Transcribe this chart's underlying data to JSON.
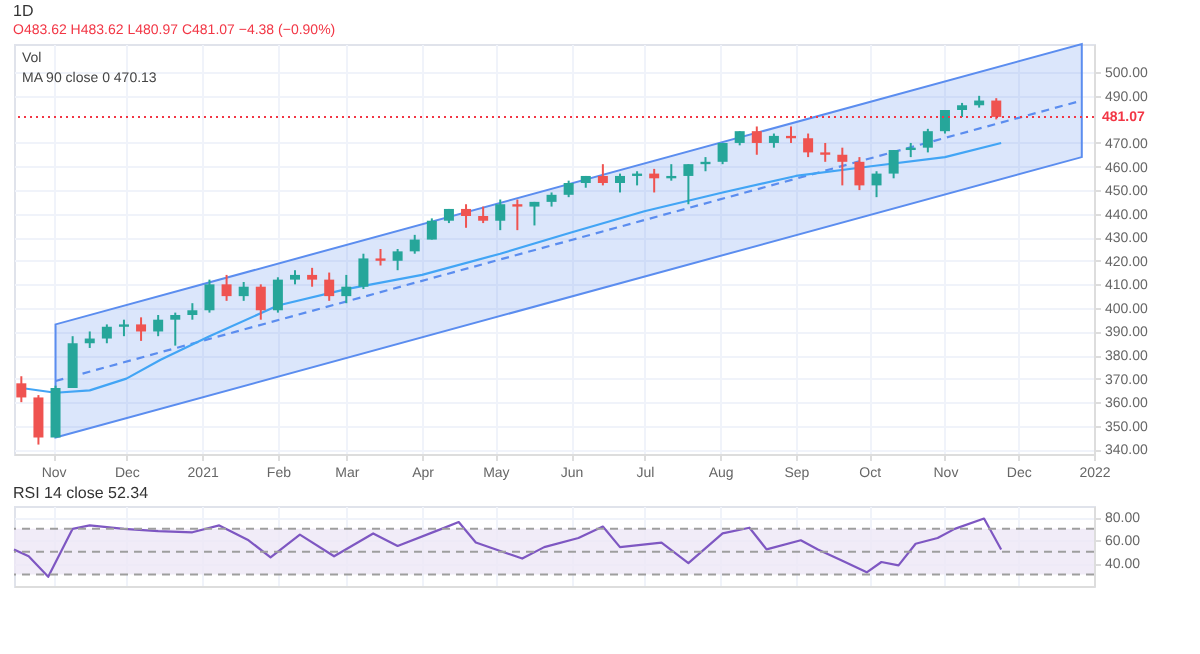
{
  "chart_data": [
    {
      "type": "candlestick",
      "title": "1D",
      "subtitle": "O483.62 H483.62 L480.97 C481.07 −4.38 (−0.90%)",
      "annotations": [
        "Vol",
        "MA 90 close 0  470.13"
      ],
      "grid": true,
      "xlim": [
        "2020-10-16",
        "2022-01-01"
      ],
      "xticks": [
        {
          "value": "2020-11-01",
          "label": "Nov"
        },
        {
          "value": "2020-12-01",
          "label": "Dec"
        },
        {
          "value": "2021-01-01",
          "label": "2021"
        },
        {
          "value": "2021-02-01",
          "label": "Feb"
        },
        {
          "value": "2021-03-01",
          "label": "Mar"
        },
        {
          "value": "2021-04-01",
          "label": "Apr"
        },
        {
          "value": "2021-05-01",
          "label": "May"
        },
        {
          "value": "2021-06-01",
          "label": "Jun"
        },
        {
          "value": "2021-07-01",
          "label": "Jul"
        },
        {
          "value": "2021-08-01",
          "label": "Aug"
        },
        {
          "value": "2021-09-01",
          "label": "Sep"
        },
        {
          "value": "2021-10-01",
          "label": "Oct"
        },
        {
          "value": "2021-11-01",
          "label": "Nov"
        },
        {
          "value": "2021-12-01",
          "label": "Dec"
        },
        {
          "value": "2022-01-01",
          "label": "2022"
        }
      ],
      "ylim": [
        338,
        512
      ],
      "yticks": [
        {
          "value": 500,
          "label": "500.00"
        },
        {
          "value": 490,
          "label": "490.00"
        },
        {
          "value": 470,
          "label": "470.00"
        },
        {
          "value": 460,
          "label": "460.00"
        },
        {
          "value": 450,
          "label": "450.00"
        },
        {
          "value": 440,
          "label": "440.00"
        },
        {
          "value": 430,
          "label": "430.00"
        },
        {
          "value": 420,
          "label": "420.00"
        },
        {
          "value": 410,
          "label": "410.00"
        },
        {
          "value": 400,
          "label": "400.00"
        },
        {
          "value": 390,
          "label": "390.00"
        },
        {
          "value": 380,
          "label": "380.00"
        },
        {
          "value": 370,
          "label": "370.00"
        },
        {
          "value": 360,
          "label": "360.00"
        },
        {
          "value": 350,
          "label": "350.00"
        },
        {
          "value": 340,
          "label": "340.00"
        }
      ],
      "ref_lines": [
        {
          "axis": "y",
          "value": 481.07,
          "label": "481.07",
          "color": "#f23645",
          "line_style": "dotted"
        }
      ],
      "series": [
        {
          "type": "line",
          "color": "#5b8def",
          "line_style": "dashed",
          "x": [
            "2020-11-02",
            "2021-12-27"
          ],
          "values": [
            369,
            488
          ],
          "lower": [
            345,
            464
          ],
          "upper": [
            393,
            512
          ]
        },
        {
          "type": "line",
          "color": "#42a5f5",
          "x": [
            "2020-10-19",
            "2020-11-02",
            "2020-11-16",
            "2020-12-01",
            "2020-12-15",
            "2021-01-04",
            "2021-02-01",
            "2021-03-01",
            "2021-04-01",
            "2021-05-03",
            "2021-06-01",
            "2021-07-01",
            "2021-08-02",
            "2021-09-01",
            "2021-10-01",
            "2021-11-01",
            "2021-11-24"
          ],
          "values": [
            366,
            364,
            365,
            370,
            378,
            388,
            401,
            408,
            414,
            423,
            432,
            441,
            449,
            456,
            460,
            464,
            470
          ]
        },
        {
          "type": "candlestick",
          "x": [
            "2020-10-19",
            "2020-10-26",
            "2020-11-02",
            "2020-11-09",
            "2020-11-16",
            "2020-11-23",
            "2020-11-30",
            "2020-12-07",
            "2020-12-14",
            "2020-12-21",
            "2020-12-28",
            "2021-01-04",
            "2021-01-11",
            "2021-01-18",
            "2021-01-25",
            "2021-02-01",
            "2021-02-08",
            "2021-02-15",
            "2021-02-22",
            "2021-03-01",
            "2021-03-08",
            "2021-03-15",
            "2021-03-22",
            "2021-03-29",
            "2021-04-05",
            "2021-04-12",
            "2021-04-19",
            "2021-04-26",
            "2021-05-03",
            "2021-05-10",
            "2021-05-17",
            "2021-05-24",
            "2021-05-31",
            "2021-06-07",
            "2021-06-14",
            "2021-06-21",
            "2021-06-28",
            "2021-07-05",
            "2021-07-12",
            "2021-07-19",
            "2021-07-26",
            "2021-08-02",
            "2021-08-09",
            "2021-08-16",
            "2021-08-23",
            "2021-08-30",
            "2021-09-06",
            "2021-09-13",
            "2021-09-20",
            "2021-09-27",
            "2021-10-04",
            "2021-10-11",
            "2021-10-18",
            "2021-10-25",
            "2021-11-01",
            "2021-11-08",
            "2021-11-15",
            "2021-11-22"
          ],
          "ohlc": [
            [
              368,
              371,
              360,
              362
            ],
            [
              362,
              363,
              342,
              345
            ],
            [
              345,
              367,
              345,
              366
            ],
            [
              366,
              388,
              366,
              385
            ],
            [
              385,
              390,
              383,
              387
            ],
            [
              387,
              393,
              385,
              392
            ],
            [
              392,
              395,
              388,
              393
            ],
            [
              393,
              396,
              386,
              390
            ],
            [
              390,
              397,
              388,
              395
            ],
            [
              395,
              398,
              384,
              397
            ],
            [
              397,
              402,
              395,
              399
            ],
            [
              399,
              412,
              398,
              410
            ],
            [
              410,
              414,
              403,
              405
            ],
            [
              405,
              411,
              403,
              409
            ],
            [
              409,
              410,
              395,
              399
            ],
            [
              399,
              413,
              398,
              412
            ],
            [
              412,
              416,
              410,
              414
            ],
            [
              414,
              417,
              409,
              412
            ],
            [
              412,
              415,
              403,
              405
            ],
            [
              405,
              414,
              402,
              409
            ],
            [
              409,
              423,
              408,
              421
            ],
            [
              421,
              425,
              418,
              420
            ],
            [
              420,
              425,
              416,
              424
            ],
            [
              424,
              431,
              423,
              429
            ],
            [
              429,
              438,
              429,
              437
            ],
            [
              437,
              442,
              436,
              442
            ],
            [
              442,
              444,
              434,
              439
            ],
            [
              439,
              443,
              436,
              437
            ],
            [
              437,
              446,
              433,
              444
            ],
            [
              444,
              446,
              433,
              443
            ],
            [
              443,
              445,
              435,
              445
            ],
            [
              445,
              449,
              443,
              448
            ],
            [
              448,
              454,
              447,
              453
            ],
            [
              453,
              456,
              451,
              456
            ],
            [
              456,
              461,
              452,
              453
            ],
            [
              453,
              457,
              449,
              456
            ],
            [
              456,
              458,
              452,
              457
            ],
            [
              457,
              459,
              449,
              455
            ],
            [
              455,
              461,
              454,
              456
            ],
            [
              456,
              461,
              444,
              461
            ],
            [
              461,
              464,
              458,
              462
            ],
            [
              462,
              470,
              461,
              470
            ],
            [
              470,
              475,
              469,
              475
            ],
            [
              475,
              477,
              465,
              470
            ],
            [
              470,
              474,
              468,
              473
            ],
            [
              473,
              477,
              470,
              472
            ],
            [
              472,
              474,
              464,
              466
            ],
            [
              466,
              470,
              462,
              465
            ],
            [
              465,
              468,
              452,
              462
            ],
            [
              462,
              464,
              450,
              452
            ],
            [
              452,
              458,
              447,
              457
            ],
            [
              457,
              467,
              455,
              467
            ],
            [
              467,
              470,
              464,
              468
            ],
            [
              468,
              476,
              466,
              475
            ],
            [
              475,
              484,
              474,
              484
            ],
            [
              484,
              487,
              481,
              486
            ],
            [
              486,
              490,
              485,
              488
            ],
            [
              488,
              489,
              480,
              481.07
            ]
          ],
          "colors": [
            "#ef5350",
            "#ef5350",
            "#26a69a",
            "#26a69a",
            "#26a69a",
            "#26a69a",
            "#26a69a",
            "#ef5350",
            "#26a69a",
            "#26a69a",
            "#26a69a",
            "#26a69a",
            "#ef5350",
            "#26a69a",
            "#ef5350",
            "#26a69a",
            "#26a69a",
            "#ef5350",
            "#ef5350",
            "#26a69a",
            "#26a69a",
            "#ef5350",
            "#26a69a",
            "#26a69a",
            "#26a69a",
            "#26a69a",
            "#ef5350",
            "#ef5350",
            "#26a69a",
            "#ef5350",
            "#26a69a",
            "#26a69a",
            "#26a69a",
            "#26a69a",
            "#ef5350",
            "#26a69a",
            "#26a69a",
            "#ef5350",
            "#26a69a",
            "#26a69a",
            "#26a69a",
            "#26a69a",
            "#26a69a",
            "#ef5350",
            "#26a69a",
            "#ef5350",
            "#ef5350",
            "#ef5350",
            "#ef5350",
            "#ef5350",
            "#26a69a",
            "#26a69a",
            "#26a69a",
            "#26a69a",
            "#26a69a",
            "#26a69a",
            "#26a69a",
            "#ef5350"
          ]
        }
      ]
    },
    {
      "type": "line",
      "title": "RSI 14 close 52.34",
      "grid": true,
      "tick_labels": "y",
      "color": "#7e57c2",
      "xlim": [
        "2020-10-16",
        "2022-01-01"
      ],
      "xticks": [
        {
          "value": "2020-11-01",
          "label": null
        },
        {
          "value": "2020-12-01",
          "label": null
        },
        {
          "value": "2021-01-01",
          "label": null
        },
        {
          "value": "2021-02-01",
          "label": null
        },
        {
          "value": "2021-03-01",
          "label": null
        },
        {
          "value": "2021-04-01",
          "label": null
        },
        {
          "value": "2021-05-01",
          "label": null
        },
        {
          "value": "2021-06-01",
          "label": null
        },
        {
          "value": "2021-07-01",
          "label": null
        },
        {
          "value": "2021-08-01",
          "label": null
        },
        {
          "value": "2021-09-01",
          "label": null
        },
        {
          "value": "2021-10-01",
          "label": null
        },
        {
          "value": "2021-11-01",
          "label": null
        },
        {
          "value": "2021-12-01",
          "label": null
        },
        {
          "value": "2022-01-01",
          "label": null
        }
      ],
      "ylim": [
        20,
        90
      ],
      "yticks": [
        {
          "value": 80,
          "label": "80.00"
        },
        {
          "value": 60,
          "label": "60.00"
        },
        {
          "value": 40,
          "label": "40.00"
        }
      ],
      "bands": [
        {
          "axis": "y",
          "from": 30,
          "to": 70,
          "color": "#ede7f6"
        }
      ],
      "ref_lines": [
        {
          "axis": "y",
          "value": 70,
          "line_style": "dashed",
          "color": "#9e9e9e"
        },
        {
          "axis": "y",
          "value": 50,
          "line_style": "dashed",
          "color": "#9e9e9e"
        },
        {
          "axis": "y",
          "value": 30,
          "line_style": "dashed",
          "color": "#9e9e9e"
        }
      ],
      "x": [
        "2020-10-16",
        "2020-10-22",
        "2020-10-30",
        "2020-11-09",
        "2020-11-16",
        "2020-11-30",
        "2020-12-14",
        "2020-12-28",
        "2021-01-08",
        "2021-01-20",
        "2021-01-29",
        "2021-02-10",
        "2021-02-24",
        "2021-03-12",
        "2021-03-22",
        "2021-04-09",
        "2021-04-16",
        "2021-04-23",
        "2021-05-12",
        "2021-05-21",
        "2021-06-04",
        "2021-06-14",
        "2021-06-21",
        "2021-07-08",
        "2021-07-19",
        "2021-08-02",
        "2021-08-13",
        "2021-08-20",
        "2021-09-03",
        "2021-09-10",
        "2021-09-20",
        "2021-09-30",
        "2021-10-06",
        "2021-10-13",
        "2021-10-20",
        "2021-10-29",
        "2021-11-05",
        "2021-11-17",
        "2021-11-24"
      ],
      "values": [
        52,
        46,
        28,
        70,
        73,
        70,
        68,
        67,
        73,
        60,
        45,
        65,
        46,
        66,
        55,
        70,
        76,
        58,
        44,
        54,
        62,
        72,
        54,
        58,
        40,
        66,
        71,
        52,
        60,
        52,
        42,
        32,
        41,
        38,
        57,
        62,
        70,
        79,
        52
      ]
    }
  ]
}
